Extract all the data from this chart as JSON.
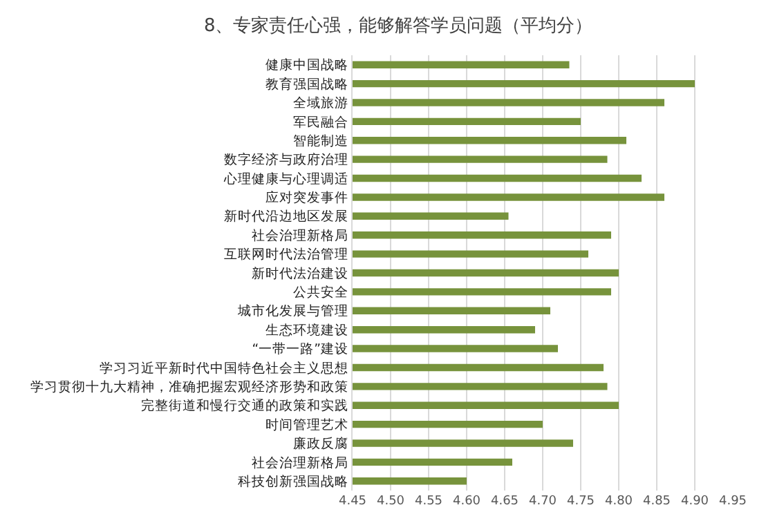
{
  "chart_data": {
    "type": "bar",
    "orientation": "horizontal",
    "title": "8、专家责任心强，能够解答学员问题（平均分）",
    "categories": [
      "健康中国战略",
      "教育强国战略",
      "全域旅游",
      "军民融合",
      "智能制造",
      "数字经济与政府治理",
      "心理健康与心理调适",
      "应对突发事件",
      "新时代沿边地区发展",
      "社会治理新格局",
      "互联网时代法治管理",
      "新时代法治建设",
      "公共安全",
      "城市化发展与管理",
      "生态环境建设",
      "“一带一路”建设",
      "学习习近平新时代中国特色社会主义思想",
      "学习贯彻十九大精神，准确把握宏观经济形势和政策",
      "完整街道和慢行交通的政策和实践",
      "时间管理艺术",
      "廉政反腐",
      "社会治理新格局",
      "科技创新强国战略"
    ],
    "values": [
      4.735,
      4.9,
      4.86,
      4.75,
      4.81,
      4.785,
      4.83,
      4.86,
      4.655,
      4.79,
      4.76,
      4.8,
      4.79,
      4.71,
      4.69,
      4.72,
      4.78,
      4.785,
      4.8,
      4.7,
      4.74,
      4.66,
      4.6
    ],
    "color": "#77933c",
    "xlim": [
      4.45,
      4.95
    ],
    "xticks": [
      {
        "value": 4.45,
        "label": "4.45"
      },
      {
        "value": 4.5,
        "label": "4.50"
      },
      {
        "value": 4.55,
        "label": "4.55"
      },
      {
        "value": 4.6,
        "label": "4.60"
      },
      {
        "value": 4.65,
        "label": "4.65"
      },
      {
        "value": 4.7,
        "label": "4.70"
      },
      {
        "value": 4.75,
        "label": "4.75"
      },
      {
        "value": 4.8,
        "label": "4.80"
      },
      {
        "value": 4.85,
        "label": "4.85"
      },
      {
        "value": 4.9,
        "label": "4.90"
      },
      {
        "value": 4.95,
        "label": "4.95"
      }
    ],
    "grid": "x"
  }
}
